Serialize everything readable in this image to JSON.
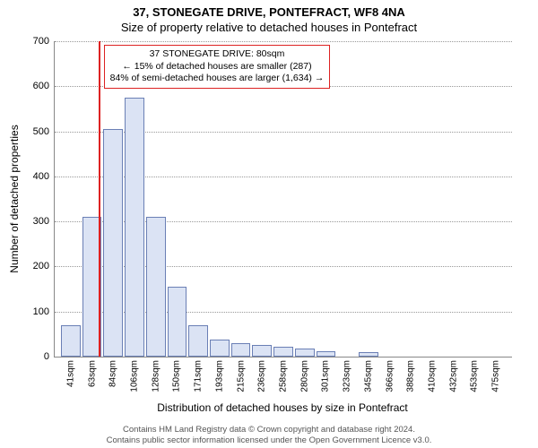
{
  "title_line1": "37, STONEGATE DRIVE, PONTEFRACT, WF8 4NA",
  "title_line2": "Size of property relative to detached houses in Pontefract",
  "y_axis_title": "Number of detached properties",
  "x_axis_title": "Distribution of detached houses by size in Pontefract",
  "chart": {
    "type": "histogram",
    "background_color": "#ffffff",
    "bar_fill": "#dbe3f4",
    "bar_border": "#6a7fb5",
    "grid_color": "#999999",
    "axis_color": "#888888",
    "ref_line_color": "#d22",
    "ylim": [
      0,
      700
    ],
    "ytick_step": 100,
    "ref_line_x_sqm": 80,
    "x_start_sqm": 41,
    "x_bin_width_sqm": 21.7,
    "x_labels": [
      "41sqm",
      "63sqm",
      "84sqm",
      "106sqm",
      "128sqm",
      "150sqm",
      "171sqm",
      "193sqm",
      "215sqm",
      "236sqm",
      "258sqm",
      "280sqm",
      "301sqm",
      "323sqm",
      "345sqm",
      "366sqm",
      "388sqm",
      "410sqm",
      "432sqm",
      "453sqm",
      "475sqm"
    ],
    "values": [
      70,
      310,
      505,
      575,
      310,
      155,
      70,
      38,
      30,
      25,
      22,
      18,
      12,
      0,
      10,
      0,
      0,
      0,
      0,
      0,
      0
    ]
  },
  "annotation": {
    "line1": "37 STONEGATE DRIVE: 80sqm",
    "line2": "← 15% of detached houses are smaller (287)",
    "line3": "84% of semi-detached houses are larger (1,634) →"
  },
  "footer": {
    "line1": "Contains HM Land Registry data © Crown copyright and database right 2024.",
    "line2": "Contains public sector information licensed under the Open Government Licence v3.0."
  }
}
